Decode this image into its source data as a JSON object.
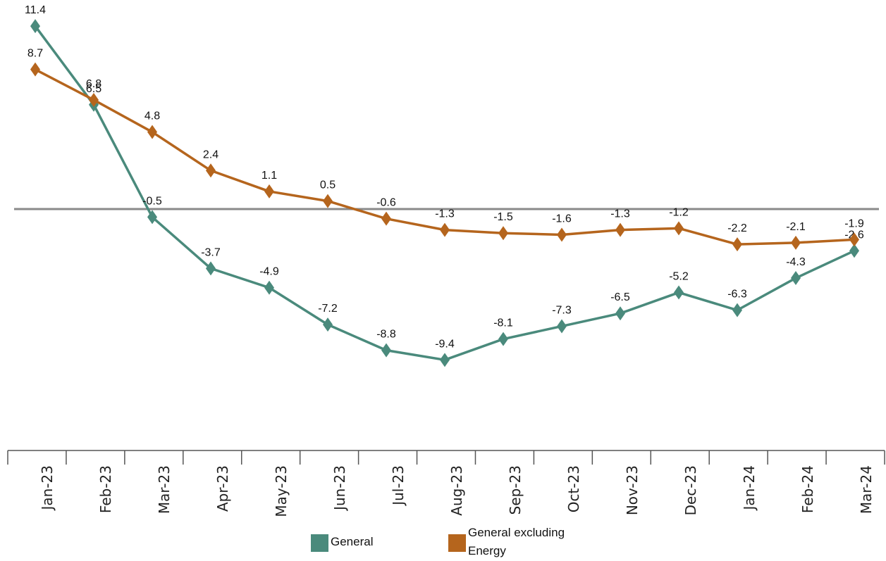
{
  "chart_data": {
    "type": "line",
    "categories": [
      "Jan-23",
      "Feb-23",
      "Mar-23",
      "Apr-23",
      "May-23",
      "Jun-23",
      "Jul-23",
      "Aug-23",
      "Sep-23",
      "Oct-23",
      "Nov-23",
      "Dec-23",
      "Jan-24",
      "Feb-24",
      "Mar-24"
    ],
    "series": [
      {
        "name": "General",
        "color": "#4a8a7c",
        "values": [
          11.4,
          6.5,
          -0.5,
          -3.7,
          -4.9,
          -7.2,
          -8.8,
          -9.4,
          -8.1,
          -7.3,
          -6.5,
          -5.2,
          -6.3,
          -4.3,
          -2.6
        ],
        "labels": [
          "11.4",
          "6.5",
          "-0.5",
          "-3.7",
          "-4.9",
          "-7.2",
          "-8.8",
          "-9.4",
          "-8.1",
          "-7.3",
          "-6.5",
          "-5.2",
          "-6.3",
          "-4.3",
          "-2.6"
        ]
      },
      {
        "name": "General excluding Energy",
        "color": "#b5651d",
        "values": [
          8.7,
          6.8,
          4.8,
          2.4,
          1.1,
          0.5,
          -0.6,
          -1.3,
          -1.5,
          -1.6,
          -1.3,
          -1.2,
          -2.2,
          -2.1,
          -1.9
        ],
        "labels": [
          "8.7",
          "6.8",
          "4.8",
          "2.4",
          "1.1",
          "0.5",
          "-0.6",
          "-1.3",
          "-1.5",
          "-1.6",
          "-1.3",
          "-1.2",
          "-2.2",
          "-2.1",
          "-1.9"
        ]
      }
    ],
    "ylim": [
      -12,
      12
    ],
    "zero_line": true,
    "grid": false,
    "legend_position": "bottom-center",
    "legend_entries": [
      "General",
      "General excluding Energy"
    ]
  }
}
